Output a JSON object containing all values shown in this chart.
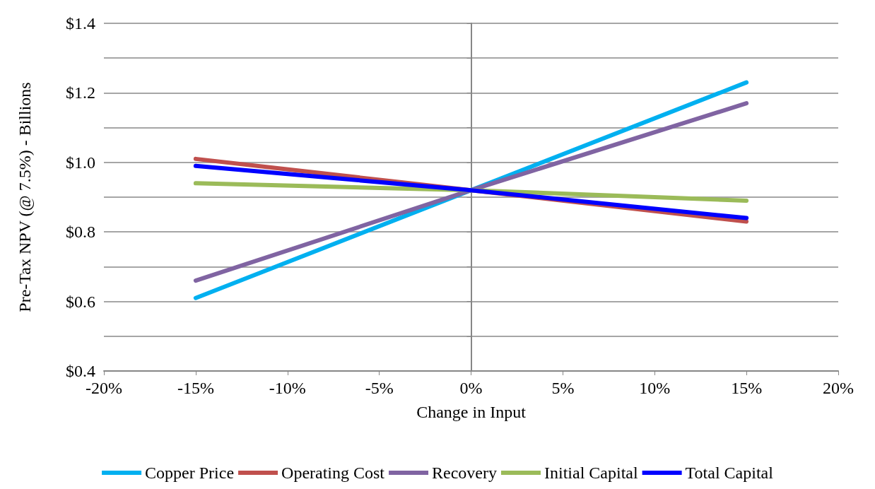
{
  "chart_data": {
    "type": "line",
    "xlabel": "Change in Input",
    "ylabel": "Pre-Tax NPV (@ 7.5%) - Billions",
    "x": [
      -15,
      0,
      15
    ],
    "series": [
      {
        "name": "Copper Price",
        "color": "#00b0f0",
        "values": [
          0.61,
          0.92,
          1.23
        ]
      },
      {
        "name": "Operating Cost",
        "color": "#c0504d",
        "values": [
          1.01,
          0.92,
          0.83
        ]
      },
      {
        "name": "Recovery",
        "color": "#8064a2",
        "values": [
          0.66,
          0.92,
          1.17
        ]
      },
      {
        "name": "Initial Capital",
        "color": "#9bbb59",
        "values": [
          0.94,
          0.92,
          0.89
        ]
      },
      {
        "name": "Total Capital",
        "color": "#0000ff",
        "values": [
          0.99,
          0.92,
          0.84
        ]
      }
    ],
    "xlim": [
      -20,
      20
    ],
    "xticks": [
      {
        "value": -20,
        "label": "-20%"
      },
      {
        "value": -15,
        "label": "-15%"
      },
      {
        "value": -10,
        "label": "-10%"
      },
      {
        "value": -5,
        "label": "-5%"
      },
      {
        "value": 0,
        "label": "0%"
      },
      {
        "value": 5,
        "label": "5%"
      },
      {
        "value": 10,
        "label": "10%"
      },
      {
        "value": 15,
        "label": "15%"
      },
      {
        "value": 20,
        "label": "20%"
      }
    ],
    "ylim": [
      0.4,
      1.4
    ],
    "yticks": [
      {
        "value": 0.4,
        "label": "$0.4"
      },
      {
        "value": 0.5,
        "label": null
      },
      {
        "value": 0.6,
        "label": "$0.6"
      },
      {
        "value": 0.7,
        "label": null
      },
      {
        "value": 0.8,
        "label": "$0.8"
      },
      {
        "value": 0.9,
        "label": null
      },
      {
        "value": 1.0,
        "label": "$1.0"
      },
      {
        "value": 1.1,
        "label": null
      },
      {
        "value": 1.2,
        "label": "$1.2"
      },
      {
        "value": 1.3,
        "label": null
      },
      {
        "value": 1.4,
        "label": "$1.4"
      }
    ],
    "grid": "y",
    "legend": "bottom",
    "marker": "none",
    "line_style": "solid"
  }
}
